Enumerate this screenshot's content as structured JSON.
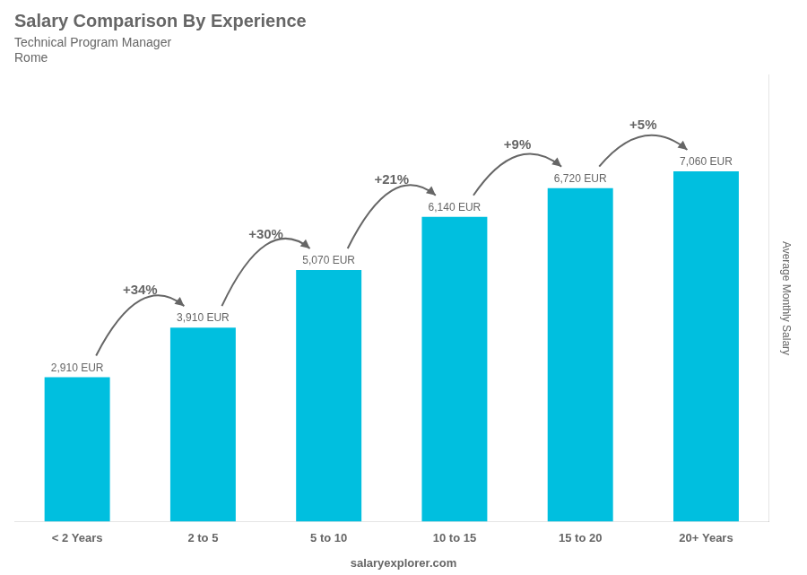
{
  "chart_data": {
    "type": "bar",
    "title": "Salary Comparison By Experience",
    "subtitle": [
      "Technical Program Manager",
      "Rome"
    ],
    "categories": [
      "< 2 Years",
      "2 to 5",
      "5 to 10",
      "10 to 15",
      "15 to 20",
      "20+ Years"
    ],
    "values": [
      2910,
      3910,
      5070,
      6140,
      6720,
      7060
    ],
    "value_labels": [
      "2,910 EUR",
      "3,910 EUR",
      "5,070 EUR",
      "6,140 EUR",
      "6,720 EUR",
      "7,060 EUR"
    ],
    "data_labels": true,
    "annotations": [
      "+34%",
      "+30%",
      "+21%",
      "+9%",
      "+5%"
    ],
    "ylabel": "Average Monthly Salary",
    "footer": "salaryexplorer.com",
    "color": "#00BFDF",
    "ylim": [
      0,
      9000
    ],
    "grid": false,
    "tick_labels": "x"
  }
}
